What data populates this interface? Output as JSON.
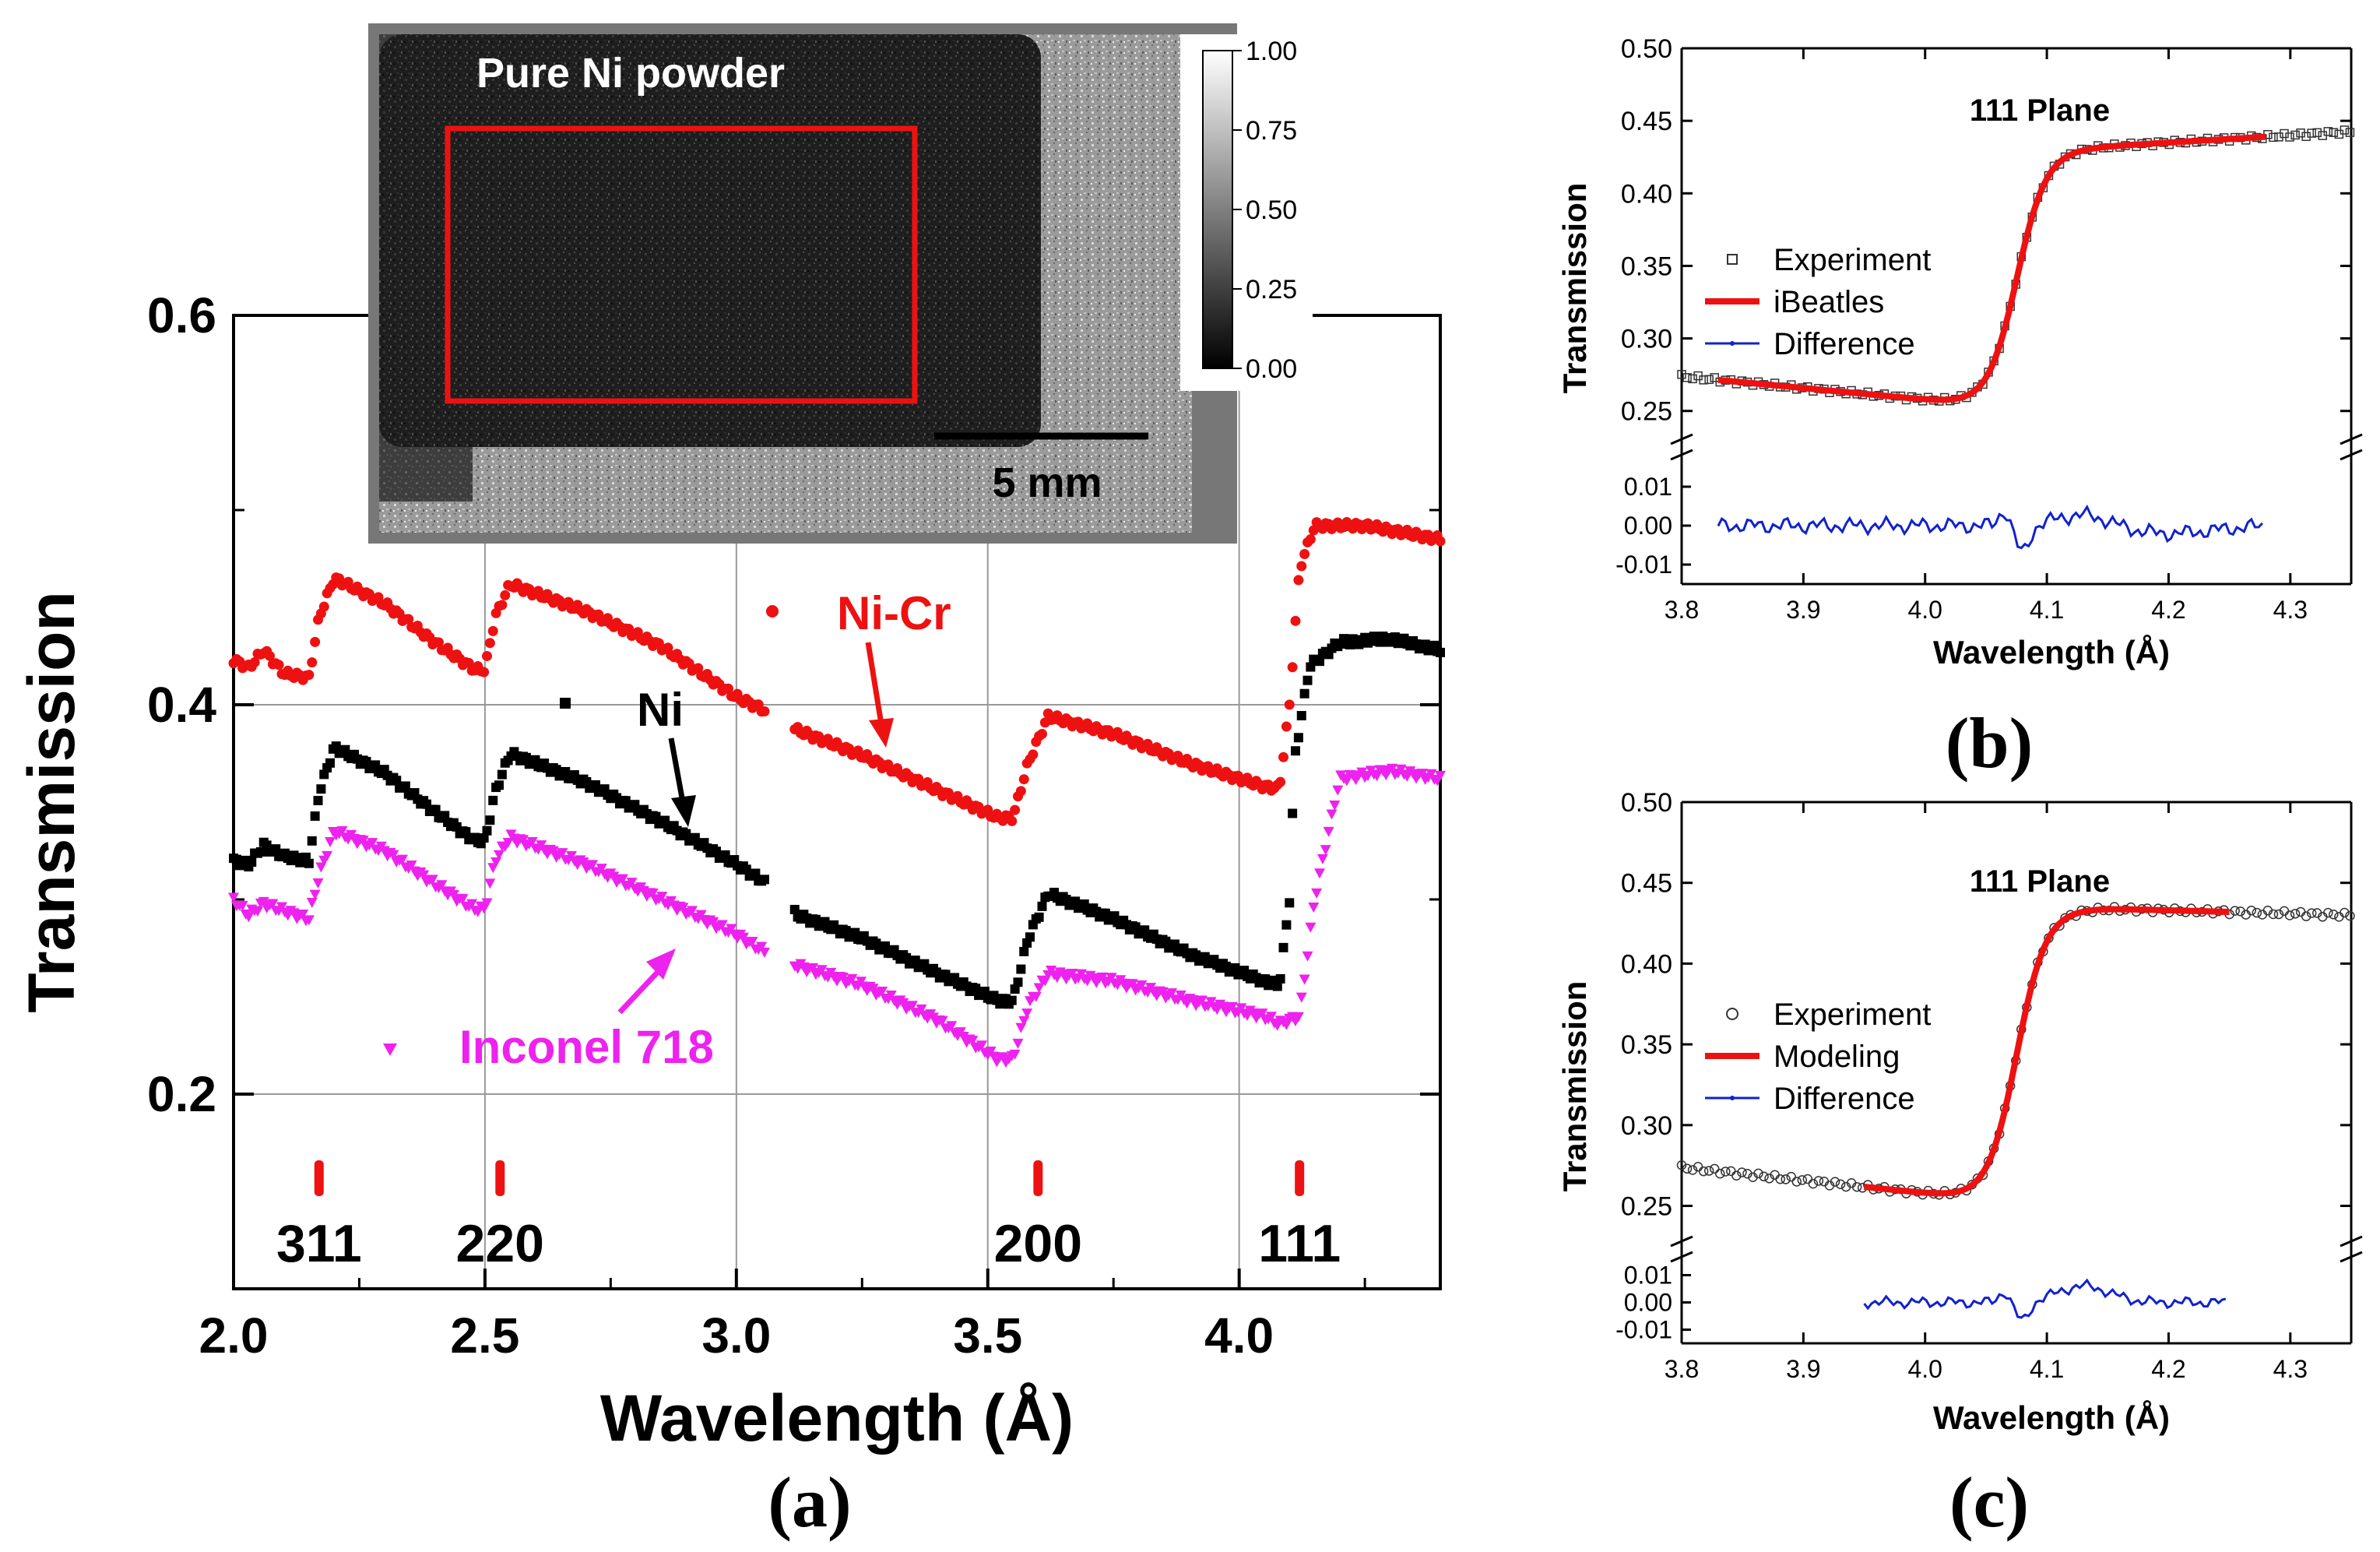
{
  "chart_data": [
    {
      "panel": "(a)",
      "type": "scatter",
      "title": "",
      "xlabel": "Wavelength (Å)",
      "ylabel": "Transmission",
      "xlim": [
        2.0,
        4.4
      ],
      "ylim": [
        0.1,
        0.6
      ],
      "xticks": [
        "2.0",
        "2.5",
        "3.0",
        "3.5",
        "4.0"
      ],
      "yticks": [
        "0.2",
        "0.4",
        "0.6"
      ],
      "grid": true,
      "series": [
        {
          "name": "Ni-Cr",
          "color": "#ee1111",
          "marker": "circle",
          "edges": [
            2.16,
            2.5,
            3.55,
            4.09
          ],
          "points": [
            [
              2.0,
              0.423
            ],
            [
              2.03,
              0.419
            ],
            [
              2.06,
              0.428
            ],
            [
              2.1,
              0.416
            ],
            [
              2.15,
              0.414
            ],
            [
              2.17,
              0.445
            ],
            [
              2.2,
              0.465
            ],
            [
              2.3,
              0.452
            ],
            [
              2.4,
              0.432
            ],
            [
              2.48,
              0.418
            ],
            [
              2.5,
              0.418
            ],
            [
              2.52,
              0.445
            ],
            [
              2.55,
              0.462
            ],
            [
              2.7,
              0.448
            ],
            [
              2.85,
              0.43
            ],
            [
              3.0,
              0.404
            ],
            [
              3.05,
              0.398
            ],
            [
              3.12,
              0.387
            ],
            [
              3.25,
              0.374
            ],
            [
              3.4,
              0.356
            ],
            [
              3.52,
              0.342
            ],
            [
              3.55,
              0.342
            ],
            [
              3.58,
              0.37
            ],
            [
              3.62,
              0.394
            ],
            [
              3.75,
              0.385
            ],
            [
              3.9,
              0.37
            ],
            [
              4.05,
              0.358
            ],
            [
              4.08,
              0.357
            ],
            [
              4.1,
              0.4
            ],
            [
              4.12,
              0.47
            ],
            [
              4.15,
              0.492
            ],
            [
              4.25,
              0.492
            ],
            [
              4.4,
              0.485
            ]
          ]
        },
        {
          "name": "Ni",
          "color": "#000000",
          "marker": "square",
          "edges": [
            2.16,
            2.5,
            3.55,
            4.09
          ],
          "points": [
            [
              2.0,
              0.32
            ],
            [
              2.03,
              0.318
            ],
            [
              2.06,
              0.328
            ],
            [
              2.1,
              0.322
            ],
            [
              2.15,
              0.32
            ],
            [
              2.17,
              0.355
            ],
            [
              2.2,
              0.378
            ],
            [
              2.3,
              0.365
            ],
            [
              2.4,
              0.345
            ],
            [
              2.48,
              0.33
            ],
            [
              2.5,
              0.33
            ],
            [
              2.52,
              0.355
            ],
            [
              2.55,
              0.375
            ],
            [
              2.7,
              0.36
            ],
            [
              2.85,
              0.34
            ],
            [
              3.0,
              0.318
            ],
            [
              3.05,
              0.31
            ],
            [
              3.12,
              0.292
            ],
            [
              3.25,
              0.28
            ],
            [
              3.4,
              0.262
            ],
            [
              3.52,
              0.248
            ],
            [
              3.55,
              0.248
            ],
            [
              3.58,
              0.28
            ],
            [
              3.62,
              0.303
            ],
            [
              3.75,
              0.29
            ],
            [
              3.9,
              0.272
            ],
            [
              4.05,
              0.258
            ],
            [
              4.08,
              0.256
            ],
            [
              4.1,
              0.3
            ],
            [
              4.11,
              0.372
            ],
            [
              4.14,
              0.42
            ],
            [
              4.2,
              0.432
            ],
            [
              4.3,
              0.434
            ],
            [
              4.4,
              0.428
            ]
          ]
        },
        {
          "name": "Inconel 718",
          "color": "#ee22ee",
          "marker": "triangle-down",
          "edges": [
            2.16,
            2.5,
            3.55,
            4.09
          ],
          "points": [
            [
              2.0,
              0.3
            ],
            [
              2.03,
              0.292
            ],
            [
              2.06,
              0.298
            ],
            [
              2.1,
              0.294
            ],
            [
              2.15,
              0.29
            ],
            [
              2.17,
              0.312
            ],
            [
              2.2,
              0.335
            ],
            [
              2.3,
              0.325
            ],
            [
              2.4,
              0.308
            ],
            [
              2.48,
              0.295
            ],
            [
              2.5,
              0.295
            ],
            [
              2.52,
              0.32
            ],
            [
              2.55,
              0.332
            ],
            [
              2.7,
              0.318
            ],
            [
              2.85,
              0.3
            ],
            [
              3.0,
              0.282
            ],
            [
              3.05,
              0.274
            ],
            [
              3.12,
              0.266
            ],
            [
              3.25,
              0.256
            ],
            [
              3.4,
              0.238
            ],
            [
              3.52,
              0.218
            ],
            [
              3.55,
              0.218
            ],
            [
              3.58,
              0.245
            ],
            [
              3.62,
              0.262
            ],
            [
              3.75,
              0.258
            ],
            [
              3.9,
              0.248
            ],
            [
              4.05,
              0.24
            ],
            [
              4.08,
              0.236
            ],
            [
              4.12,
              0.24
            ],
            [
              4.15,
              0.3
            ],
            [
              4.2,
              0.362
            ],
            [
              4.3,
              0.366
            ],
            [
              4.4,
              0.362
            ]
          ]
        }
      ],
      "annotations": [
        "Ni-Cr",
        "Ni",
        "Inconel 718"
      ],
      "bragg_markers": [
        {
          "label": "311",
          "x": 2.17
        },
        {
          "label": "220",
          "x": 2.53
        },
        {
          "label": "200",
          "x": 3.6
        },
        {
          "label": "111",
          "x": 4.12
        }
      ],
      "inset": {
        "title": "Pure Ni powder",
        "scale_bar": "5 mm",
        "colorbar_ticks": [
          "1.00",
          "0.75",
          "0.50",
          "0.25",
          "0.00"
        ]
      },
      "caption": "(a)"
    },
    {
      "panel": "(b)",
      "type": "line",
      "title": "111 Plane",
      "xlabel": "Wavelength (Å)",
      "ylabel": "Transmission",
      "xlim": [
        3.8,
        4.35
      ],
      "ylim": [
        0.23,
        0.5
      ],
      "xticks": [
        "3.8",
        "3.9",
        "4.0",
        "4.1",
        "4.2",
        "4.3"
      ],
      "yticks": [
        "0.25",
        "0.30",
        "0.35",
        "0.40",
        "0.45",
        "0.50"
      ],
      "diff_ylim": [
        -0.015,
        0.015
      ],
      "diff_yticks": [
        "0.01",
        "0.00",
        "-0.01"
      ],
      "edge": {
        "x0": 4.075,
        "width": 0.012,
        "low": 0.253,
        "high": 0.43
      },
      "series": [
        {
          "name": "Experiment",
          "color": "#333333",
          "marker": "open-square",
          "range": [
            3.8,
            4.35
          ]
        },
        {
          "name": "iBeatles",
          "color": "#ee1111",
          "marker": "line",
          "range": [
            3.83,
            4.28
          ]
        },
        {
          "name": "Difference",
          "color": "#1122cc",
          "marker": "line-dot",
          "range": [
            3.83,
            4.28
          ]
        }
      ],
      "legend": "left",
      "caption": "(b)"
    },
    {
      "panel": "(c)",
      "type": "line",
      "title": "111 Plane",
      "xlabel": "Wavelength (Å)",
      "ylabel": "Transmission",
      "xlim": [
        3.8,
        4.35
      ],
      "ylim": [
        0.23,
        0.5
      ],
      "xticks": [
        "3.8",
        "3.9",
        "4.0",
        "4.1",
        "4.2",
        "4.3"
      ],
      "yticks": [
        "0.25",
        "0.30",
        "0.35",
        "0.40",
        "0.45",
        "0.50"
      ],
      "diff_ylim": [
        -0.015,
        0.015
      ],
      "diff_yticks": [
        "0.01",
        "0.00",
        "-0.01"
      ],
      "edge": {
        "x0": 4.075,
        "width": 0.012,
        "low": 0.253,
        "high": 0.434
      },
      "series": [
        {
          "name": "Experiment",
          "color": "#333333",
          "marker": "open-circle",
          "range": [
            3.8,
            4.35
          ]
        },
        {
          "name": "Modeling",
          "color": "#ee1111",
          "marker": "line",
          "range": [
            3.95,
            4.25
          ]
        },
        {
          "name": "Difference",
          "color": "#1122cc",
          "marker": "line-dot",
          "range": [
            3.95,
            4.25
          ]
        }
      ],
      "legend": "left",
      "caption": "(c)"
    }
  ]
}
